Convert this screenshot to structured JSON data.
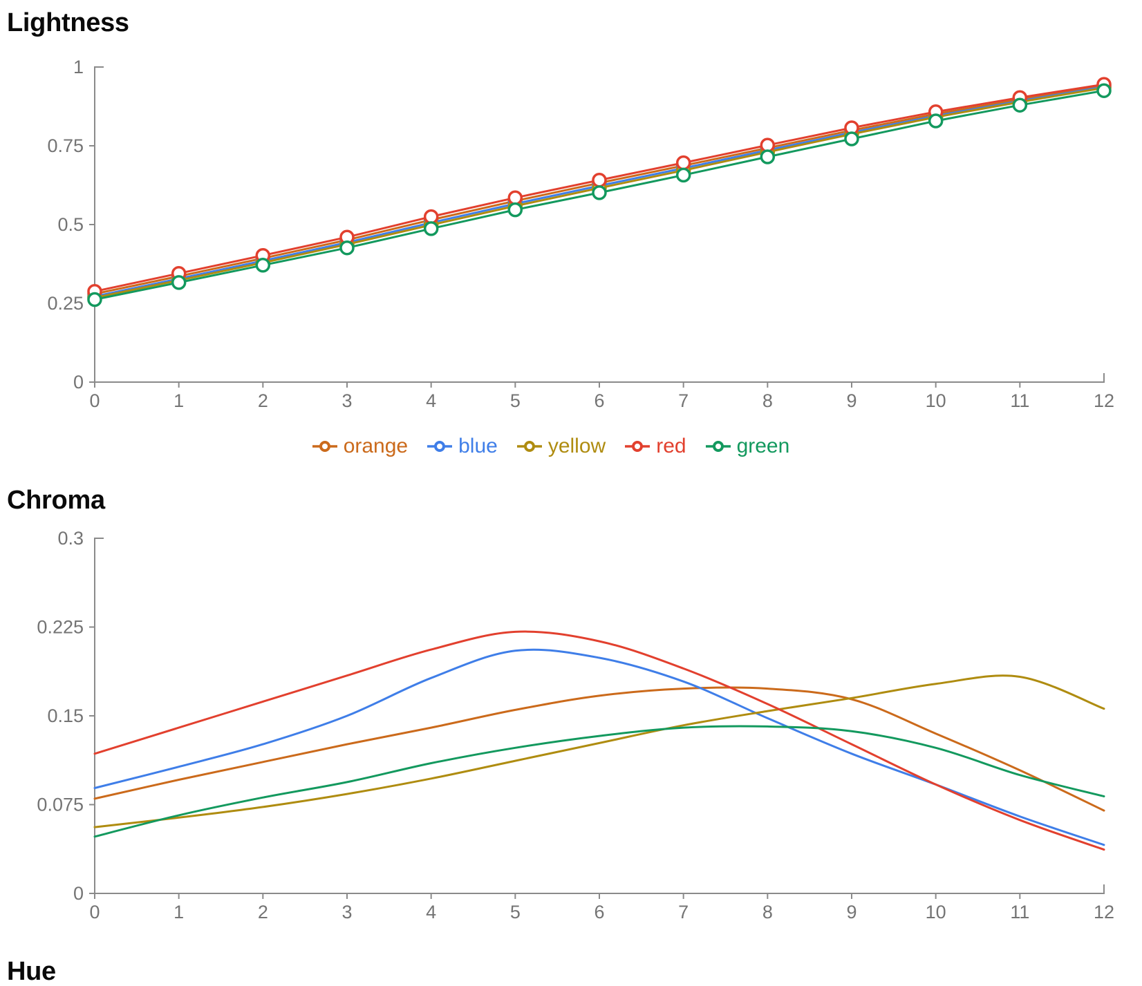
{
  "page": {
    "background": "#ffffff",
    "title_color": "#0a0a0a"
  },
  "colors": {
    "orange": "#cb6a1b",
    "blue": "#3f7ee8",
    "yellow": "#af8c10",
    "red": "#e2402e",
    "green": "#13995e",
    "axis": "#8a8a8a",
    "tick_label": "#747474"
  },
  "legend": {
    "items": [
      {
        "label": "orange",
        "color_key": "orange"
      },
      {
        "label": "blue",
        "color_key": "blue"
      },
      {
        "label": "yellow",
        "color_key": "yellow"
      },
      {
        "label": "red",
        "color_key": "red"
      },
      {
        "label": "green",
        "color_key": "green"
      }
    ]
  },
  "chart_data": [
    {
      "type": "line",
      "title": "Lightness",
      "xlim": [
        0,
        12
      ],
      "ylim": [
        0,
        1
      ],
      "x": [
        0,
        1,
        2,
        3,
        4,
        5,
        6,
        7,
        8,
        9,
        10,
        11,
        12
      ],
      "x_tick_labels": [
        "0",
        "1",
        "2",
        "3",
        "4",
        "5",
        "6",
        "7",
        "8",
        "9",
        "10",
        "11",
        "12"
      ],
      "y_ticks": [
        0,
        0.25,
        0.5,
        0.75,
        1
      ],
      "y_tick_labels": [
        "0",
        "0.25",
        "0.5",
        "0.75",
        "1"
      ],
      "markers": true,
      "smooth": false,
      "grid": false,
      "legend_position": "bottom",
      "series": [
        {
          "name": "orange",
          "color_key": "orange",
          "values": [
            0.28,
            0.336,
            0.393,
            0.451,
            0.515,
            0.575,
            0.632,
            0.687,
            0.743,
            0.799,
            0.851,
            0.897,
            0.941
          ]
        },
        {
          "name": "blue",
          "color_key": "blue",
          "values": [
            0.272,
            0.328,
            0.385,
            0.443,
            0.506,
            0.566,
            0.623,
            0.679,
            0.736,
            0.792,
            0.845,
            0.892,
            0.937
          ]
        },
        {
          "name": "yellow",
          "color_key": "yellow",
          "values": [
            0.268,
            0.323,
            0.379,
            0.437,
            0.499,
            0.559,
            0.616,
            0.672,
            0.73,
            0.787,
            0.841,
            0.889,
            0.934
          ]
        },
        {
          "name": "red",
          "color_key": "red",
          "values": [
            0.288,
            0.345,
            0.402,
            0.46,
            0.525,
            0.585,
            0.641,
            0.696,
            0.752,
            0.807,
            0.858,
            0.903,
            0.945
          ]
        },
        {
          "name": "green",
          "color_key": "green",
          "values": [
            0.262,
            0.316,
            0.371,
            0.426,
            0.487,
            0.547,
            0.601,
            0.657,
            0.715,
            0.772,
            0.829,
            0.879,
            0.925
          ]
        }
      ]
    },
    {
      "type": "line",
      "title": "Chroma",
      "xlim": [
        0,
        12
      ],
      "ylim": [
        0,
        0.3
      ],
      "x": [
        0,
        1,
        2,
        3,
        4,
        5,
        6,
        7,
        8,
        9,
        10,
        11,
        12
      ],
      "x_tick_labels": [
        "0",
        "1",
        "2",
        "3",
        "4",
        "5",
        "6",
        "7",
        "8",
        "9",
        "10",
        "11",
        "12"
      ],
      "y_ticks": [
        0,
        0.075,
        0.15,
        0.225,
        0.3
      ],
      "y_tick_labels": [
        "0",
        "0.075",
        "0.15",
        "0.225",
        "0.3"
      ],
      "markers": false,
      "smooth": true,
      "grid": false,
      "legend_position": "none",
      "series": [
        {
          "name": "orange",
          "color_key": "orange",
          "values": [
            0.08,
            0.096,
            0.111,
            0.126,
            0.14,
            0.155,
            0.167,
            0.173,
            0.173,
            0.164,
            0.135,
            0.104,
            0.07
          ]
        },
        {
          "name": "blue",
          "color_key": "blue",
          "values": [
            0.089,
            0.107,
            0.126,
            0.15,
            0.182,
            0.205,
            0.199,
            0.179,
            0.148,
            0.118,
            0.092,
            0.065,
            0.041
          ]
        },
        {
          "name": "yellow",
          "color_key": "yellow",
          "values": [
            0.056,
            0.064,
            0.073,
            0.084,
            0.097,
            0.112,
            0.127,
            0.142,
            0.154,
            0.165,
            0.177,
            0.183,
            0.156
          ]
        },
        {
          "name": "red",
          "color_key": "red",
          "values": [
            0.118,
            0.14,
            0.162,
            0.184,
            0.206,
            0.221,
            0.213,
            0.19,
            0.16,
            0.126,
            0.092,
            0.062,
            0.037
          ]
        },
        {
          "name": "green",
          "color_key": "green",
          "values": [
            0.048,
            0.066,
            0.081,
            0.094,
            0.11,
            0.123,
            0.133,
            0.14,
            0.141,
            0.137,
            0.123,
            0.1,
            0.082
          ]
        }
      ]
    },
    {
      "type": "line",
      "title": "Hue",
      "note": "chart body clipped at bottom edge of screenshot",
      "series": []
    }
  ]
}
